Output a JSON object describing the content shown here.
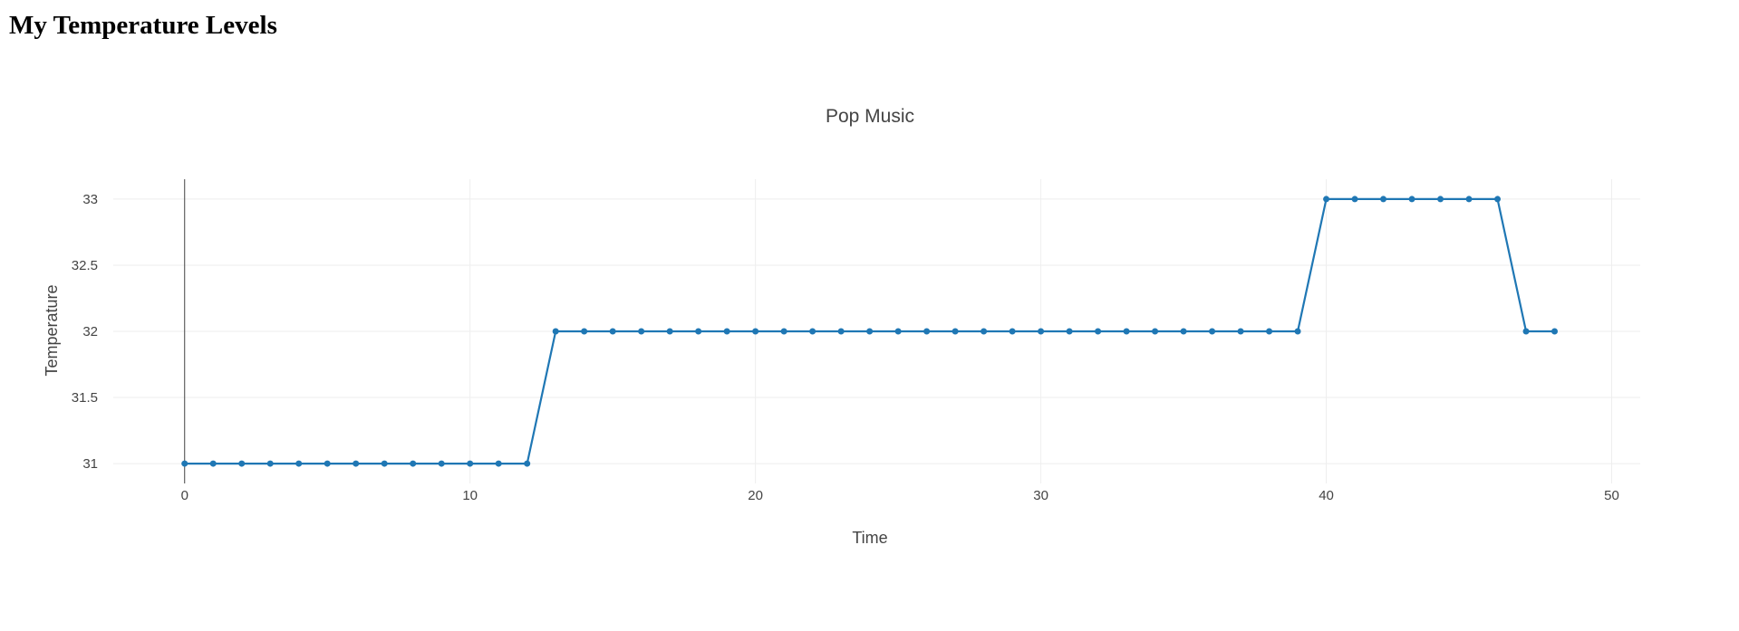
{
  "page": {
    "heading": "My Temperature Levels"
  },
  "chart_data": {
    "type": "line",
    "mode": "lines+markers",
    "title": "Pop Music",
    "xlabel": "Time",
    "ylabel": "Temperature",
    "xlim": [
      -2.5,
      51
    ],
    "ylim": [
      30.85,
      33.15
    ],
    "xticks": [
      0,
      10,
      20,
      30,
      40,
      50
    ],
    "xtick_labels": [
      "0",
      "10",
      "20",
      "30",
      "40",
      "50"
    ],
    "yticks": [
      31,
      31.5,
      32,
      32.5,
      33
    ],
    "ytick_labels": [
      "31",
      "31.5",
      "32",
      "32.5",
      "33"
    ],
    "grid": true,
    "legend": false,
    "series": [
      {
        "color": "#1f77b4",
        "x": [
          0,
          1,
          2,
          3,
          4,
          5,
          6,
          7,
          8,
          9,
          10,
          11,
          12,
          13,
          14,
          15,
          16,
          17,
          18,
          19,
          20,
          21,
          22,
          23,
          24,
          25,
          26,
          27,
          28,
          29,
          30,
          31,
          32,
          33,
          34,
          35,
          36,
          37,
          38,
          39,
          40,
          41,
          42,
          43,
          44,
          45,
          46,
          47,
          48
        ],
        "y": [
          31,
          31,
          31,
          31,
          31,
          31,
          31,
          31,
          31,
          31,
          31,
          31,
          31,
          32,
          32,
          32,
          32,
          32,
          32,
          32,
          32,
          32,
          32,
          32,
          32,
          32,
          32,
          32,
          32,
          32,
          32,
          32,
          32,
          32,
          32,
          32,
          32,
          32,
          32,
          32,
          33,
          33,
          33,
          33,
          33,
          33,
          33,
          32,
          32
        ]
      }
    ]
  }
}
